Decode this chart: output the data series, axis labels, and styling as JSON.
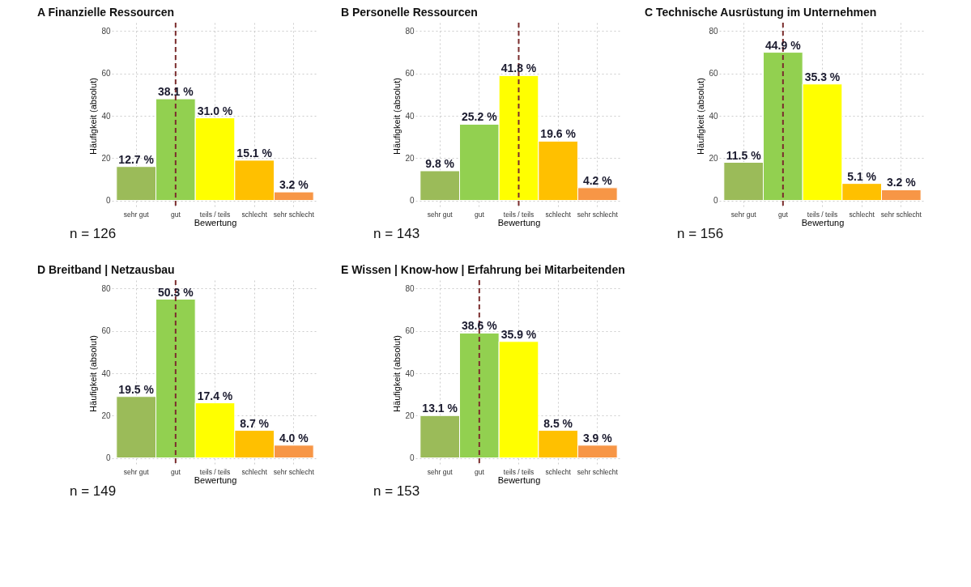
{
  "chart_data": [
    {
      "type": "bar",
      "title": "A  Finanzielle Ressourcen",
      "xlabel": "Bewertung",
      "ylabel": "Häufigkeit (absolut)",
      "categories": [
        "sehr gut",
        "gut",
        "teils / teils",
        "schlecht",
        "sehr schlecht"
      ],
      "values": [
        16,
        48,
        39,
        19,
        4
      ],
      "colors": [
        "#9bbb59",
        "#92d050",
        "#ffff00",
        "#ffc000",
        "#f79646"
      ],
      "ylim": [
        -4,
        84
      ],
      "yticks": [
        0,
        20,
        40,
        60,
        80
      ],
      "grid": true,
      "ref_lines": [
        {
          "axis": "x",
          "value": "gut",
          "color": "#7b2d2d",
          "line_style": "dashed"
        }
      ],
      "annotations": [
        {
          "text": "12.7 %",
          "x": "sehr gut",
          "y": 16
        },
        {
          "text": "38.1 %",
          "x": "gut",
          "y": 48
        },
        {
          "text": "31.0 %",
          "x": "teils / teils",
          "y": 39
        },
        {
          "text": "15.1 %",
          "x": "schlecht",
          "y": 19
        },
        {
          "text": "3.2 %",
          "x": "sehr schlecht",
          "y": 4
        },
        "n = 126"
      ]
    },
    {
      "type": "bar",
      "title": "B  Personelle Ressourcen",
      "xlabel": "Bewertung",
      "ylabel": "Häufigkeit (absolut)",
      "categories": [
        "sehr gut",
        "gut",
        "teils / teils",
        "schlecht",
        "sehr schlecht"
      ],
      "values": [
        14,
        36,
        59,
        28,
        6
      ],
      "colors": [
        "#9bbb59",
        "#92d050",
        "#ffff00",
        "#ffc000",
        "#f79646"
      ],
      "ylim": [
        -4,
        84
      ],
      "yticks": [
        0,
        20,
        40,
        60,
        80
      ],
      "grid": true,
      "ref_lines": [
        {
          "axis": "x",
          "value": "teils / teils",
          "color": "#7b2d2d",
          "line_style": "dashed"
        }
      ],
      "annotations": [
        {
          "text": "9.8 %",
          "x": "sehr gut",
          "y": 14
        },
        {
          "text": "25.2 %",
          "x": "gut",
          "y": 36
        },
        {
          "text": "41.8 %",
          "x": "teils / teils",
          "y": 59
        },
        {
          "text": "19.6 %",
          "x": "schlecht",
          "y": 28
        },
        {
          "text": "4.2 %",
          "x": "sehr schlecht",
          "y": 6
        },
        "n = 143"
      ]
    },
    {
      "type": "bar",
      "title": "C  Technische Ausrüstung im Unternehmen",
      "xlabel": "Bewertung",
      "ylabel": "Häufigkeit (absolut)",
      "categories": [
        "sehr gut",
        "gut",
        "teils / teils",
        "schlecht",
        "sehr schlecht"
      ],
      "values": [
        18,
        70,
        55,
        8,
        5
      ],
      "colors": [
        "#9bbb59",
        "#92d050",
        "#ffff00",
        "#ffc000",
        "#f79646"
      ],
      "ylim": [
        -4,
        84
      ],
      "yticks": [
        0,
        20,
        40,
        60,
        80
      ],
      "grid": true,
      "ref_lines": [
        {
          "axis": "x",
          "value": "gut",
          "color": "#7b2d2d",
          "line_style": "dashed"
        }
      ],
      "annotations": [
        {
          "text": "11.5 %",
          "x": "sehr gut",
          "y": 18
        },
        {
          "text": "44.9 %",
          "x": "gut",
          "y": 70
        },
        {
          "text": "35.3 %",
          "x": "teils / teils",
          "y": 55
        },
        {
          "text": "5.1 %",
          "x": "schlecht",
          "y": 8
        },
        {
          "text": "3.2 %",
          "x": "sehr schlecht",
          "y": 5
        },
        "n = 156"
      ]
    },
    {
      "type": "bar",
      "title": "D  Breitband | Netzausbau",
      "xlabel": "Bewertung",
      "ylabel": "Häufigkeit (absolut)",
      "categories": [
        "sehr gut",
        "gut",
        "teils / teils",
        "schlecht",
        "sehr schlecht"
      ],
      "values": [
        29,
        75,
        26,
        13,
        6
      ],
      "colors": [
        "#9bbb59",
        "#92d050",
        "#ffff00",
        "#ffc000",
        "#f79646"
      ],
      "ylim": [
        -4,
        84
      ],
      "yticks": [
        0,
        20,
        40,
        60,
        80
      ],
      "grid": true,
      "ref_lines": [
        {
          "axis": "x",
          "value": "gut",
          "color": "#7b2d2d",
          "line_style": "dashed"
        }
      ],
      "annotations": [
        {
          "text": "19.5 %",
          "x": "sehr gut",
          "y": 29
        },
        {
          "text": "50.3 %",
          "x": "gut",
          "y": 75
        },
        {
          "text": "17.4 %",
          "x": "teils / teils",
          "y": 26
        },
        {
          "text": "8.7 %",
          "x": "schlecht",
          "y": 13
        },
        {
          "text": "4.0 %",
          "x": "sehr schlecht",
          "y": 6
        },
        "n = 149"
      ]
    },
    {
      "type": "bar",
      "title": "E  Wissen | Know-how | Erfahrung bei Mitarbeitenden",
      "xlabel": "Bewertung",
      "ylabel": "Häufigkeit (absolut)",
      "categories": [
        "sehr gut",
        "gut",
        "teils / teils",
        "schlecht",
        "sehr schlecht"
      ],
      "values": [
        20,
        59,
        55,
        13,
        6
      ],
      "colors": [
        "#9bbb59",
        "#92d050",
        "#ffff00",
        "#ffc000",
        "#f79646"
      ],
      "ylim": [
        -4,
        84
      ],
      "yticks": [
        0,
        20,
        40,
        60,
        80
      ],
      "grid": true,
      "ref_lines": [
        {
          "axis": "x",
          "value": "gut",
          "color": "#7b2d2d",
          "line_style": "dashed"
        }
      ],
      "annotations": [
        {
          "text": "13.1 %",
          "x": "sehr gut",
          "y": 20
        },
        {
          "text": "38.6 %",
          "x": "gut",
          "y": 59
        },
        {
          "text": "35.9 %",
          "x": "teils / teils",
          "y": 55
        },
        {
          "text": "8.5 %",
          "x": "schlecht",
          "y": 13
        },
        {
          "text": "3.9 %",
          "x": "sehr schlecht",
          "y": 6
        },
        "n = 153"
      ]
    }
  ]
}
